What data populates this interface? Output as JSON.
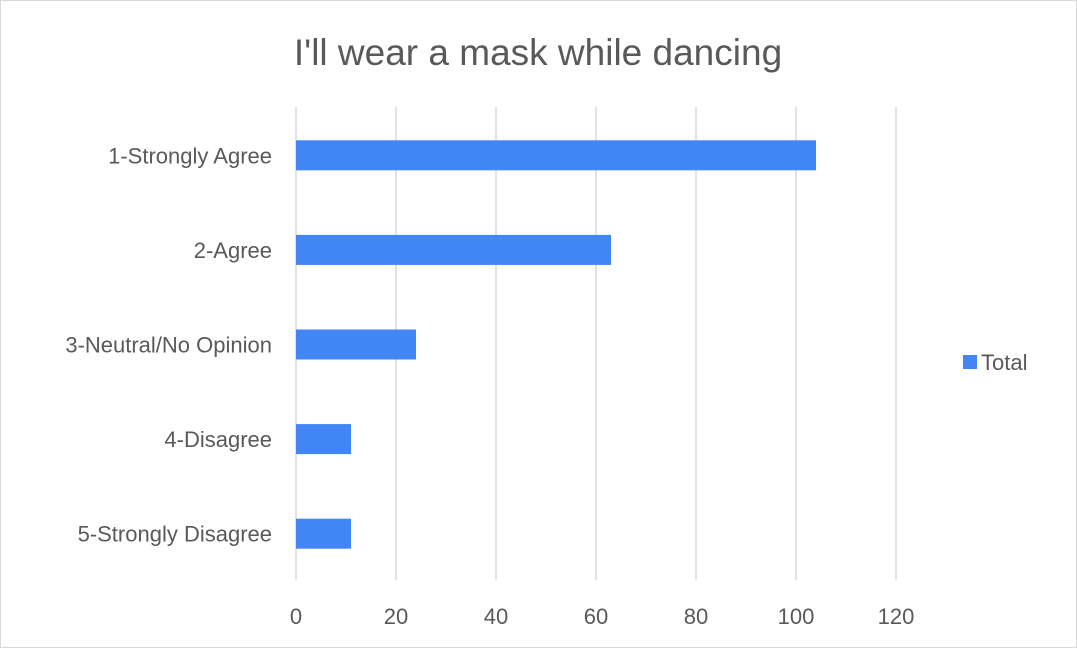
{
  "chart_data": {
    "type": "bar",
    "orientation": "horizontal",
    "title": "I'll wear a mask while dancing",
    "categories": [
      "1-Strongly Agree",
      "2-Agree",
      "3-Neutral/No Opinion",
      "4-Disagree",
      "5-Strongly Disagree"
    ],
    "series": [
      {
        "name": "Total",
        "values": [
          104,
          63,
          24,
          11,
          11
        ],
        "color": "#4285f4"
      }
    ],
    "xlim": [
      0,
      120
    ],
    "xticks": [
      "0",
      "20",
      "40",
      "60",
      "80",
      "100",
      "120"
    ],
    "grid": true,
    "legend_position": "right"
  }
}
